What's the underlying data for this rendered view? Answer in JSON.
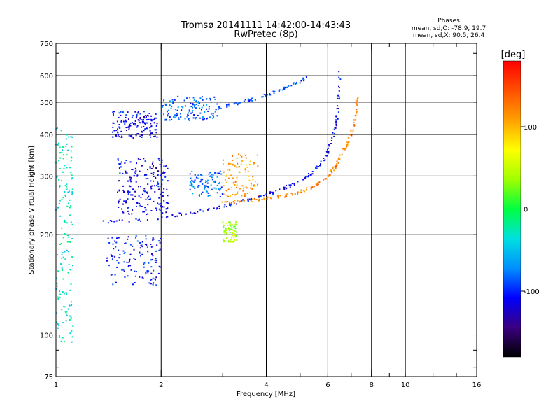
{
  "chart_data": {
    "type": "scatter",
    "title": "Tromsø 20141111 14:42:00-14:43:43",
    "subtitle": "RwPretec (8p)",
    "xlabel": "Frequency [MHz]",
    "ylabel": "Stationary phase Virtual Height [km]",
    "xscale": "log",
    "yscale": "log",
    "xlim": [
      1,
      16
    ],
    "ylim": [
      75,
      750
    ],
    "grid": true,
    "x_ticks": [
      1,
      2,
      4,
      6,
      8,
      10,
      16
    ],
    "x_major": [
      1,
      2,
      4,
      8,
      16
    ],
    "x_gridlines": [
      2,
      4,
      6,
      8,
      10
    ],
    "y_ticks": [
      75,
      100,
      200,
      300,
      400,
      500,
      600,
      750
    ],
    "y_gridlines": [
      100,
      200,
      300,
      400,
      500,
      600
    ],
    "phase_stats": {
      "heading": "Phases",
      "line_o": "mean, sd,O: -78.9, 19.7",
      "line_x": "mean, sd,X:  90.5, 26.4"
    },
    "colorbar": {
      "label": "[deg]",
      "min": -180,
      "max": 180,
      "ticks": [
        100,
        0,
        -100
      ],
      "colors": [
        "#000000",
        "#3a0080",
        "#0000ff",
        "#0090ff",
        "#00e0e0",
        "#00ff40",
        "#a0ff00",
        "#ffff00",
        "#ffa000",
        "#ff5000",
        "#ff0000"
      ]
    },
    "clusters": [
      {
        "x": [
          1.0,
          1.12
        ],
        "y": [
          95,
          420
        ],
        "phase": -30,
        "n": 160
      },
      {
        "x": [
          1.45,
          1.95
        ],
        "y": [
          390,
          470
        ],
        "phase": -110,
        "n": 150
      },
      {
        "x": [
          1.5,
          2.1
        ],
        "y": [
          230,
          340
        ],
        "phase": -115,
        "n": 200
      },
      {
        "x": [
          1.4,
          2.0
        ],
        "y": [
          140,
          200
        ],
        "phase": -105,
        "n": 130
      },
      {
        "x": [
          2.0,
          2.9
        ],
        "y": [
          440,
          520
        ],
        "phase": -85,
        "n": 130
      },
      {
        "x": [
          2.4,
          3.0
        ],
        "y": [
          260,
          310
        ],
        "phase": -80,
        "n": 90
      },
      {
        "x": [
          3.0,
          3.3
        ],
        "y": [
          190,
          220
        ],
        "phase": 40,
        "n": 70
      },
      {
        "x": [
          3.0,
          3.8
        ],
        "y": [
          260,
          350
        ],
        "phase": 110,
        "n": 90
      }
    ],
    "traces": [
      {
        "name": "",
        "x": [
          1.35,
          1.8,
          2.4,
          3.0,
          3.6,
          4.2,
          4.8,
          5.4,
          5.9,
          6.2,
          6.4,
          6.5
        ],
        "y": [
          218,
          222,
          232,
          243,
          255,
          268,
          284,
          305,
          340,
          390,
          460,
          620
        ],
        "phase": -110
      },
      {
        "name": "",
        "x": [
          3.0,
          3.6,
          4.2,
          4.8,
          5.4,
          5.9,
          6.3,
          6.7,
          7.0,
          7.2,
          7.3
        ],
        "y": [
          250,
          253,
          258,
          265,
          277,
          295,
          320,
          360,
          400,
          450,
          520
        ],
        "phase": 120
      },
      {
        "name": "",
        "x": [
          2.9,
          3.3,
          3.8,
          4.3,
          4.8,
          5.2
        ],
        "y": [
          480,
          495,
          515,
          540,
          565,
          590
        ],
        "phase": -90
      }
    ]
  }
}
